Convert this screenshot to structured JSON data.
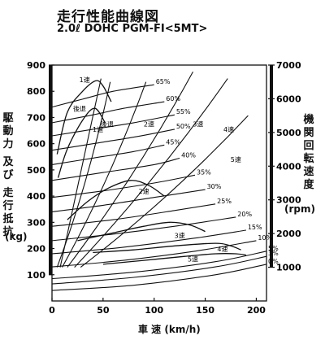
{
  "chart_data": {
    "type": "line",
    "title": "走行性能曲線図",
    "subtitle": "2.0ℓ DOHC PGM-FI<5MT>",
    "ylabel_left": "駆動力 及び 走行抵抗",
    "ylabel_left_unit": "(kg)",
    "ylabel_right": "機関回転速度",
    "ylabel_right_unit": "(rpm)",
    "xlabel": "車 速 (km/h)",
    "xlim": [
      0,
      210
    ],
    "ylim": [
      0,
      900
    ],
    "rpm_lim": [
      0,
      7000
    ],
    "x_ticks": [
      0,
      50,
      100,
      150,
      200
    ],
    "y_ticks": [
      100,
      200,
      300,
      400,
      500,
      600,
      700,
      800,
      900
    ],
    "rpm_ticks": [
      1000,
      2000,
      3000,
      4000,
      5000,
      6000,
      7000
    ],
    "grid": false,
    "tractive_force": [
      {
        "name": "1速",
        "x": [
          5,
          15,
          30,
          43,
          50,
          58
        ],
        "y": [
          560,
          720,
          800,
          840,
          820,
          760
        ]
      },
      {
        "name": "2速",
        "x": [
          15,
          35,
          55,
          77,
          95,
          110
        ],
        "y": [
          310,
          380,
          430,
          460,
          440,
          400
        ]
      },
      {
        "name": "3速",
        "x": [
          25,
          60,
          90,
          115,
          135,
          150
        ],
        "y": [
          230,
          260,
          285,
          300,
          290,
          265
        ]
      },
      {
        "name": "4速",
        "x": [
          40,
          80,
          120,
          160,
          175,
          185
        ],
        "y": [
          185,
          195,
          210,
          220,
          210,
          195
        ]
      },
      {
        "name": "5速",
        "x": [
          50,
          90,
          130,
          160,
          180,
          190
        ],
        "y": [
          140,
          155,
          170,
          180,
          180,
          175
        ]
      }
    ],
    "rpm_lines": [
      {
        "name": "1速",
        "x": [
          5,
          57
        ],
        "rpm": [
          1000,
          6500
        ]
      },
      {
        "name": "2速",
        "x": [
          10,
          92
        ],
        "rpm": [
          1000,
          6500
        ]
      },
      {
        "name": "3速",
        "x": [
          15,
          138
        ],
        "rpm": [
          1000,
          6800
        ]
      },
      {
        "name": "4速",
        "x": [
          22,
          172
        ],
        "rpm": [
          1000,
          6600
        ]
      },
      {
        "name": "5速",
        "x": [
          28,
          192
        ],
        "rpm": [
          1000,
          5500
        ]
      }
    ],
    "running_resistance": [
      {
        "name": "65%",
        "x": [
          0,
          30,
          60,
          100
        ],
        "y": [
          740,
          770,
          800,
          825
        ]
      },
      {
        "name": "60%",
        "x": [
          0,
          40,
          70,
          110
        ],
        "y": [
          680,
          710,
          735,
          760
        ]
      },
      {
        "name": "55%",
        "x": [
          0,
          40,
          80,
          120
        ],
        "y": [
          630,
          655,
          680,
          710
        ]
      },
      {
        "name": "50%",
        "x": [
          0,
          40,
          80,
          120
        ],
        "y": [
          575,
          600,
          625,
          655
        ]
      },
      {
        "name": "45%",
        "x": [
          0,
          40,
          80,
          110
        ],
        "y": [
          520,
          545,
          570,
          595
        ]
      },
      {
        "name": "40%",
        "x": [
          0,
          50,
          100,
          125
        ],
        "y": [
          460,
          490,
          520,
          545
        ]
      },
      {
        "name": "35%",
        "x": [
          0,
          50,
          100,
          140
        ],
        "y": [
          395,
          420,
          450,
          480
        ]
      },
      {
        "name": "30%",
        "x": [
          0,
          50,
          100,
          150
        ],
        "y": [
          340,
          365,
          395,
          425
        ]
      },
      {
        "name": "25%",
        "x": [
          0,
          60,
          120,
          160
        ],
        "y": [
          285,
          310,
          345,
          370
        ]
      },
      {
        "name": "20%",
        "x": [
          0,
          60,
          120,
          180
        ],
        "y": [
          230,
          255,
          285,
          320
        ]
      },
      {
        "name": "15%",
        "x": [
          0,
          70,
          140,
          190
        ],
        "y": [
          180,
          205,
          240,
          270
        ]
      },
      {
        "name": "10%",
        "x": [
          0,
          70,
          140,
          200
        ],
        "y": [
          130,
          155,
          190,
          230
        ]
      },
      {
        "name": "5%",
        "x": [
          0,
          80,
          160,
          210
        ],
        "y": [
          85,
          110,
          150,
          190
        ]
      },
      {
        "name": "3%",
        "x": [
          0,
          80,
          160,
          210
        ],
        "y": [
          65,
          90,
          130,
          170
        ]
      },
      {
        "name": "0%",
        "x": [
          0,
          80,
          160,
          210
        ],
        "y": [
          40,
          60,
          100,
          140
        ]
      }
    ],
    "reverse_force": {
      "name": "後退",
      "x": [
        6,
        15,
        30,
        42,
        52
      ],
      "y": [
        470,
        580,
        690,
        735,
        680
      ]
    },
    "reverse_rpm": {
      "name": "後退",
      "x": [
        8,
        48
      ],
      "rpm": [
        1000,
        6600
      ]
    },
    "annotations": [
      {
        "text": "1速",
        "x": 32,
        "y": 835
      },
      {
        "text": "後退",
        "x": 27,
        "y": 725
      },
      {
        "text": "1速",
        "x": 45,
        "y": 645
      },
      {
        "text": "後退",
        "x": 54,
        "y": 665
      },
      {
        "text": "2速",
        "x": 95,
        "y": 665
      },
      {
        "text": "3速",
        "x": 143,
        "y": 665
      },
      {
        "text": "4速",
        "x": 173,
        "y": 645
      },
      {
        "text": "5速",
        "x": 180,
        "y": 530
      },
      {
        "text": "2速",
        "x": 90,
        "y": 410
      },
      {
        "text": "3速",
        "x": 125,
        "y": 240
      },
      {
        "text": "4速",
        "x": 167,
        "y": 190
      },
      {
        "text": "5速",
        "x": 138,
        "y": 150
      }
    ]
  }
}
